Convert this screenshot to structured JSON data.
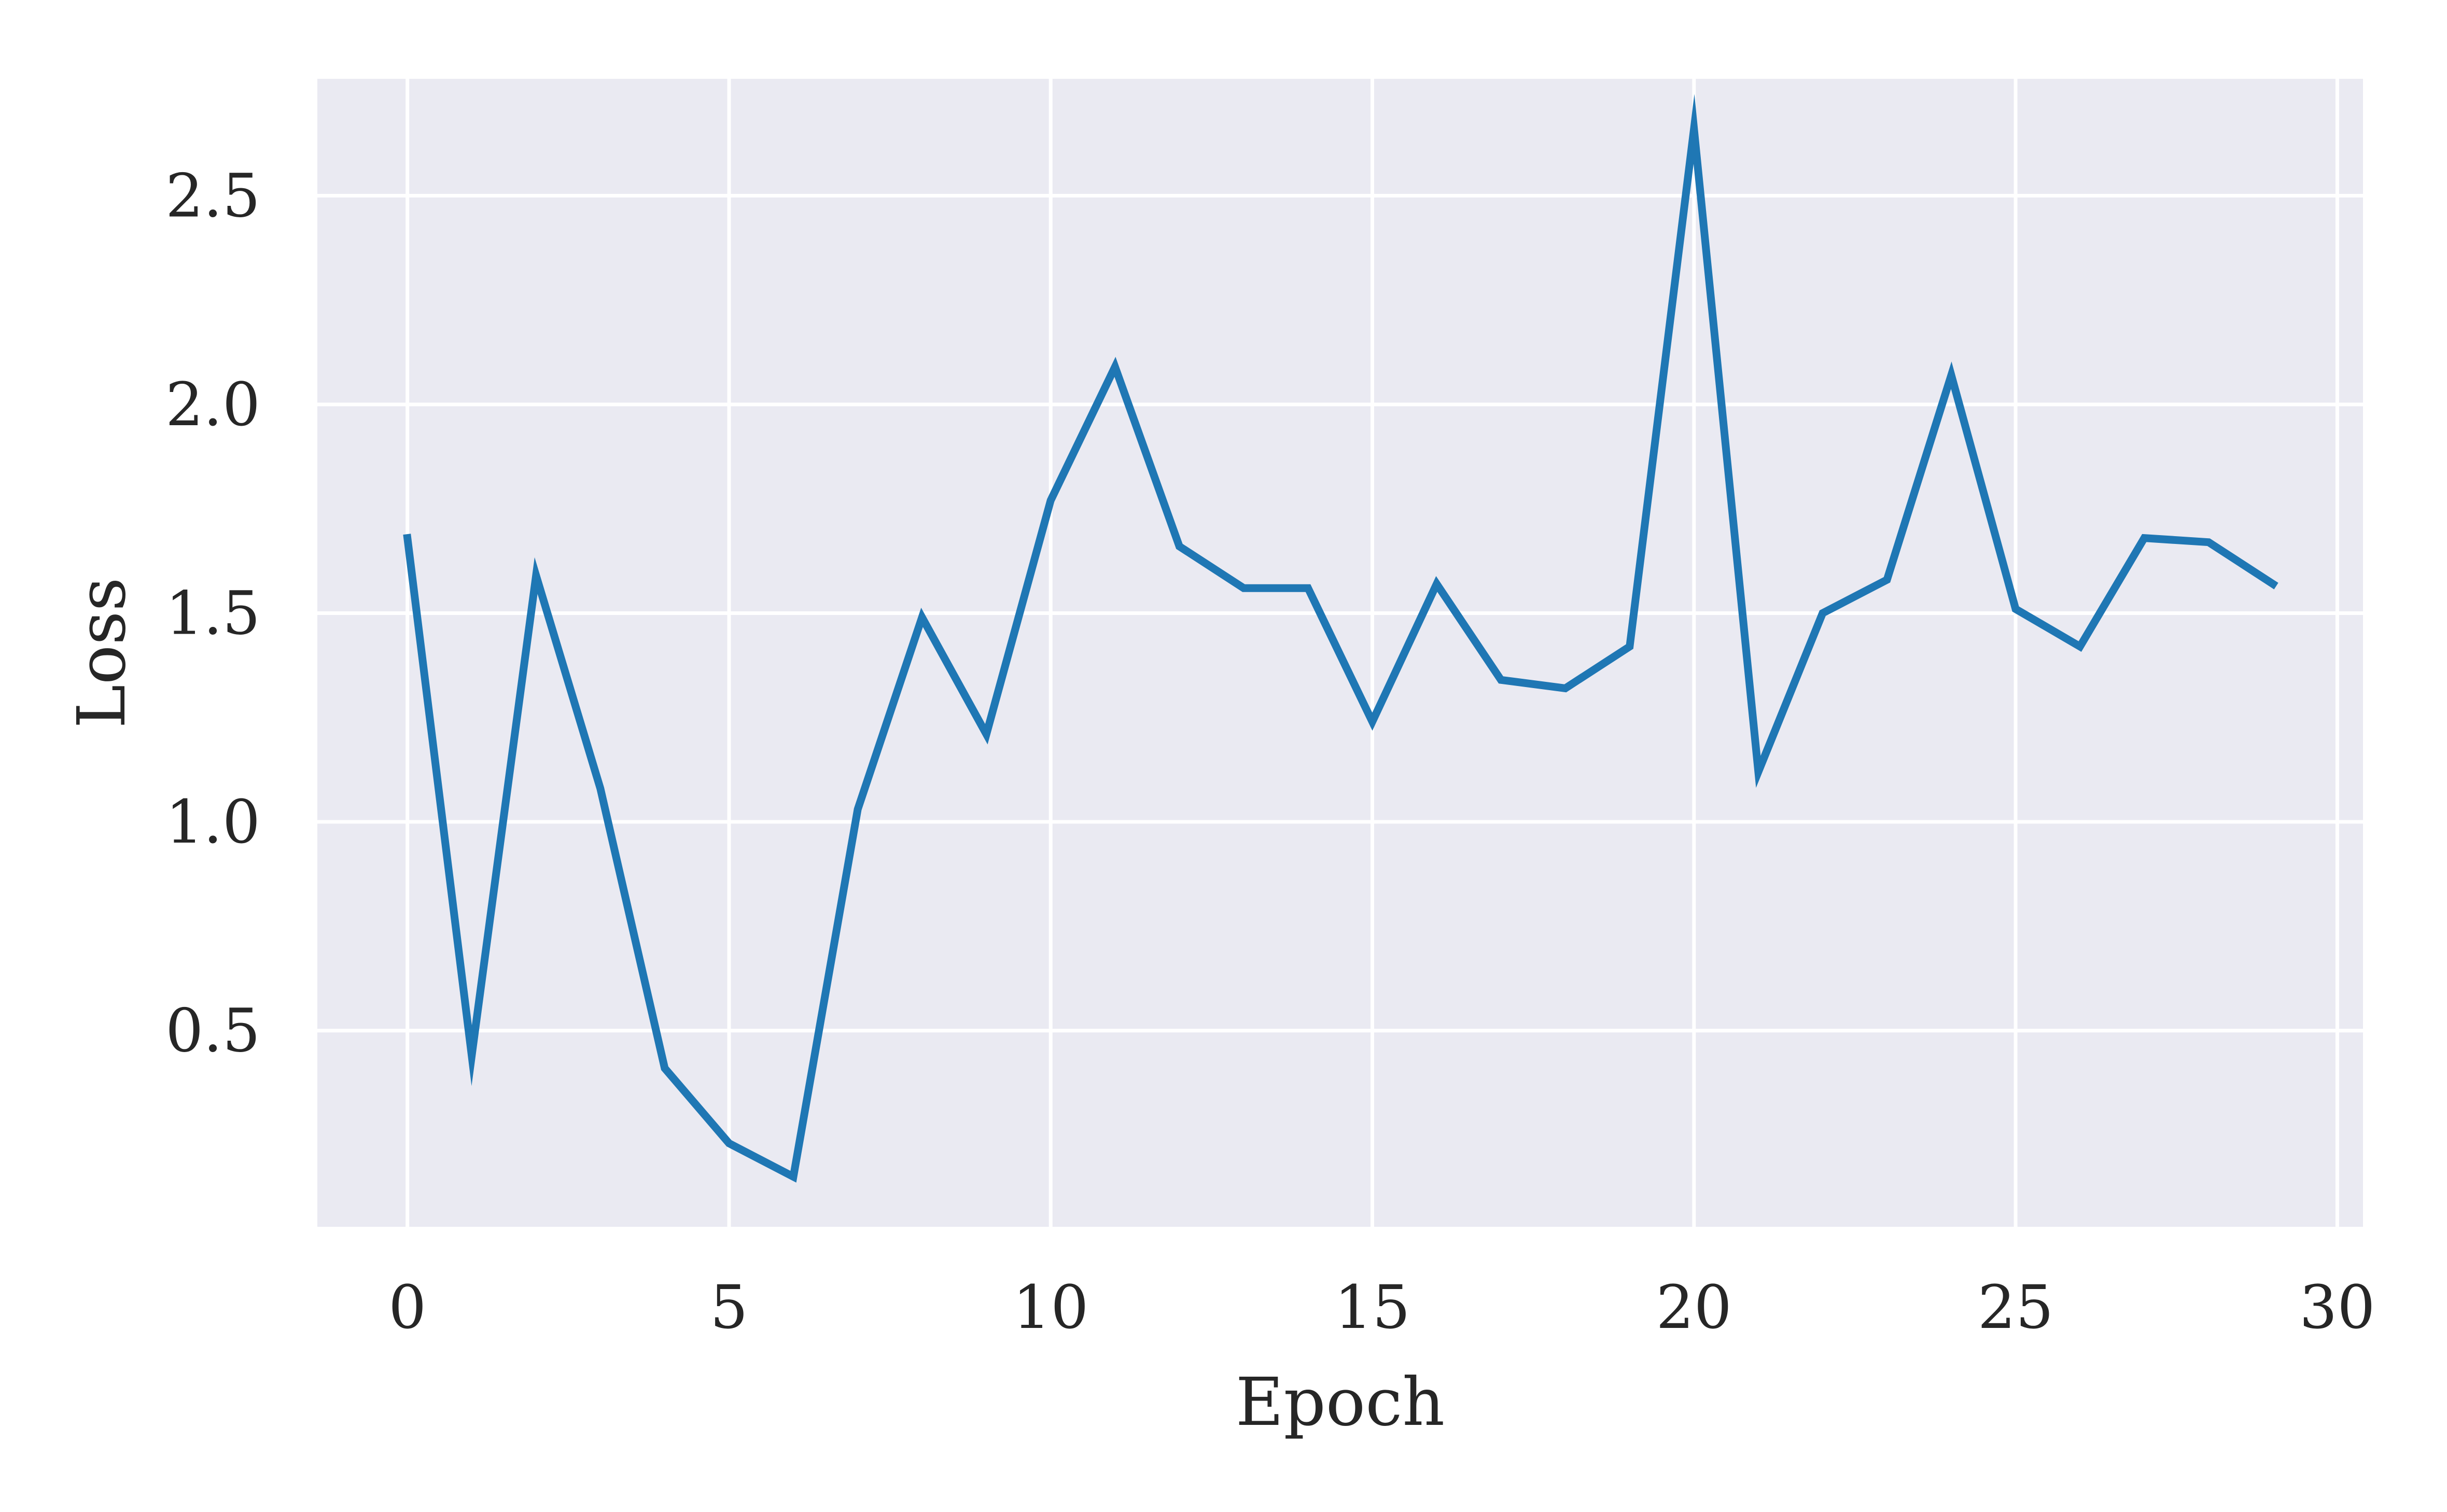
{
  "chart_data": {
    "type": "line",
    "title": "",
    "xlabel": "Epoch",
    "ylabel": "Loss",
    "xlim": [
      -1.4,
      30.4
    ],
    "ylim": [
      0.03,
      2.78
    ],
    "xticks": [
      0,
      5,
      10,
      15,
      20,
      25,
      30
    ],
    "xtick_labels": [
      "0",
      "5",
      "10",
      "15",
      "20",
      "25",
      "30"
    ],
    "yticks": [
      0.5,
      1.0,
      1.5,
      2.0,
      2.5
    ],
    "ytick_labels": [
      "0.5",
      "1.0",
      "1.5",
      "2.0",
      "2.5"
    ],
    "grid": true,
    "colors": {
      "plot_background": "#eaeaf2",
      "grid": "#ffffff",
      "line": "#1f77b4",
      "text": "#262626"
    },
    "series": [
      {
        "x": [
          0,
          1,
          2,
          3,
          4,
          5,
          6,
          7,
          8,
          9,
          10,
          11,
          12,
          13,
          14,
          15,
          16,
          17,
          18,
          19,
          20,
          21,
          22,
          23,
          24,
          25,
          26,
          27,
          28,
          29
        ],
        "values": [
          1.68,
          0.44,
          1.59,
          1.08,
          0.41,
          0.23,
          0.15,
          1.03,
          1.49,
          1.21,
          1.77,
          2.09,
          1.66,
          1.56,
          1.56,
          1.24,
          1.57,
          1.34,
          1.32,
          1.42,
          2.66,
          1.12,
          1.5,
          1.58,
          2.07,
          1.51,
          1.42,
          1.68,
          1.67,
          1.57
        ]
      }
    ]
  }
}
